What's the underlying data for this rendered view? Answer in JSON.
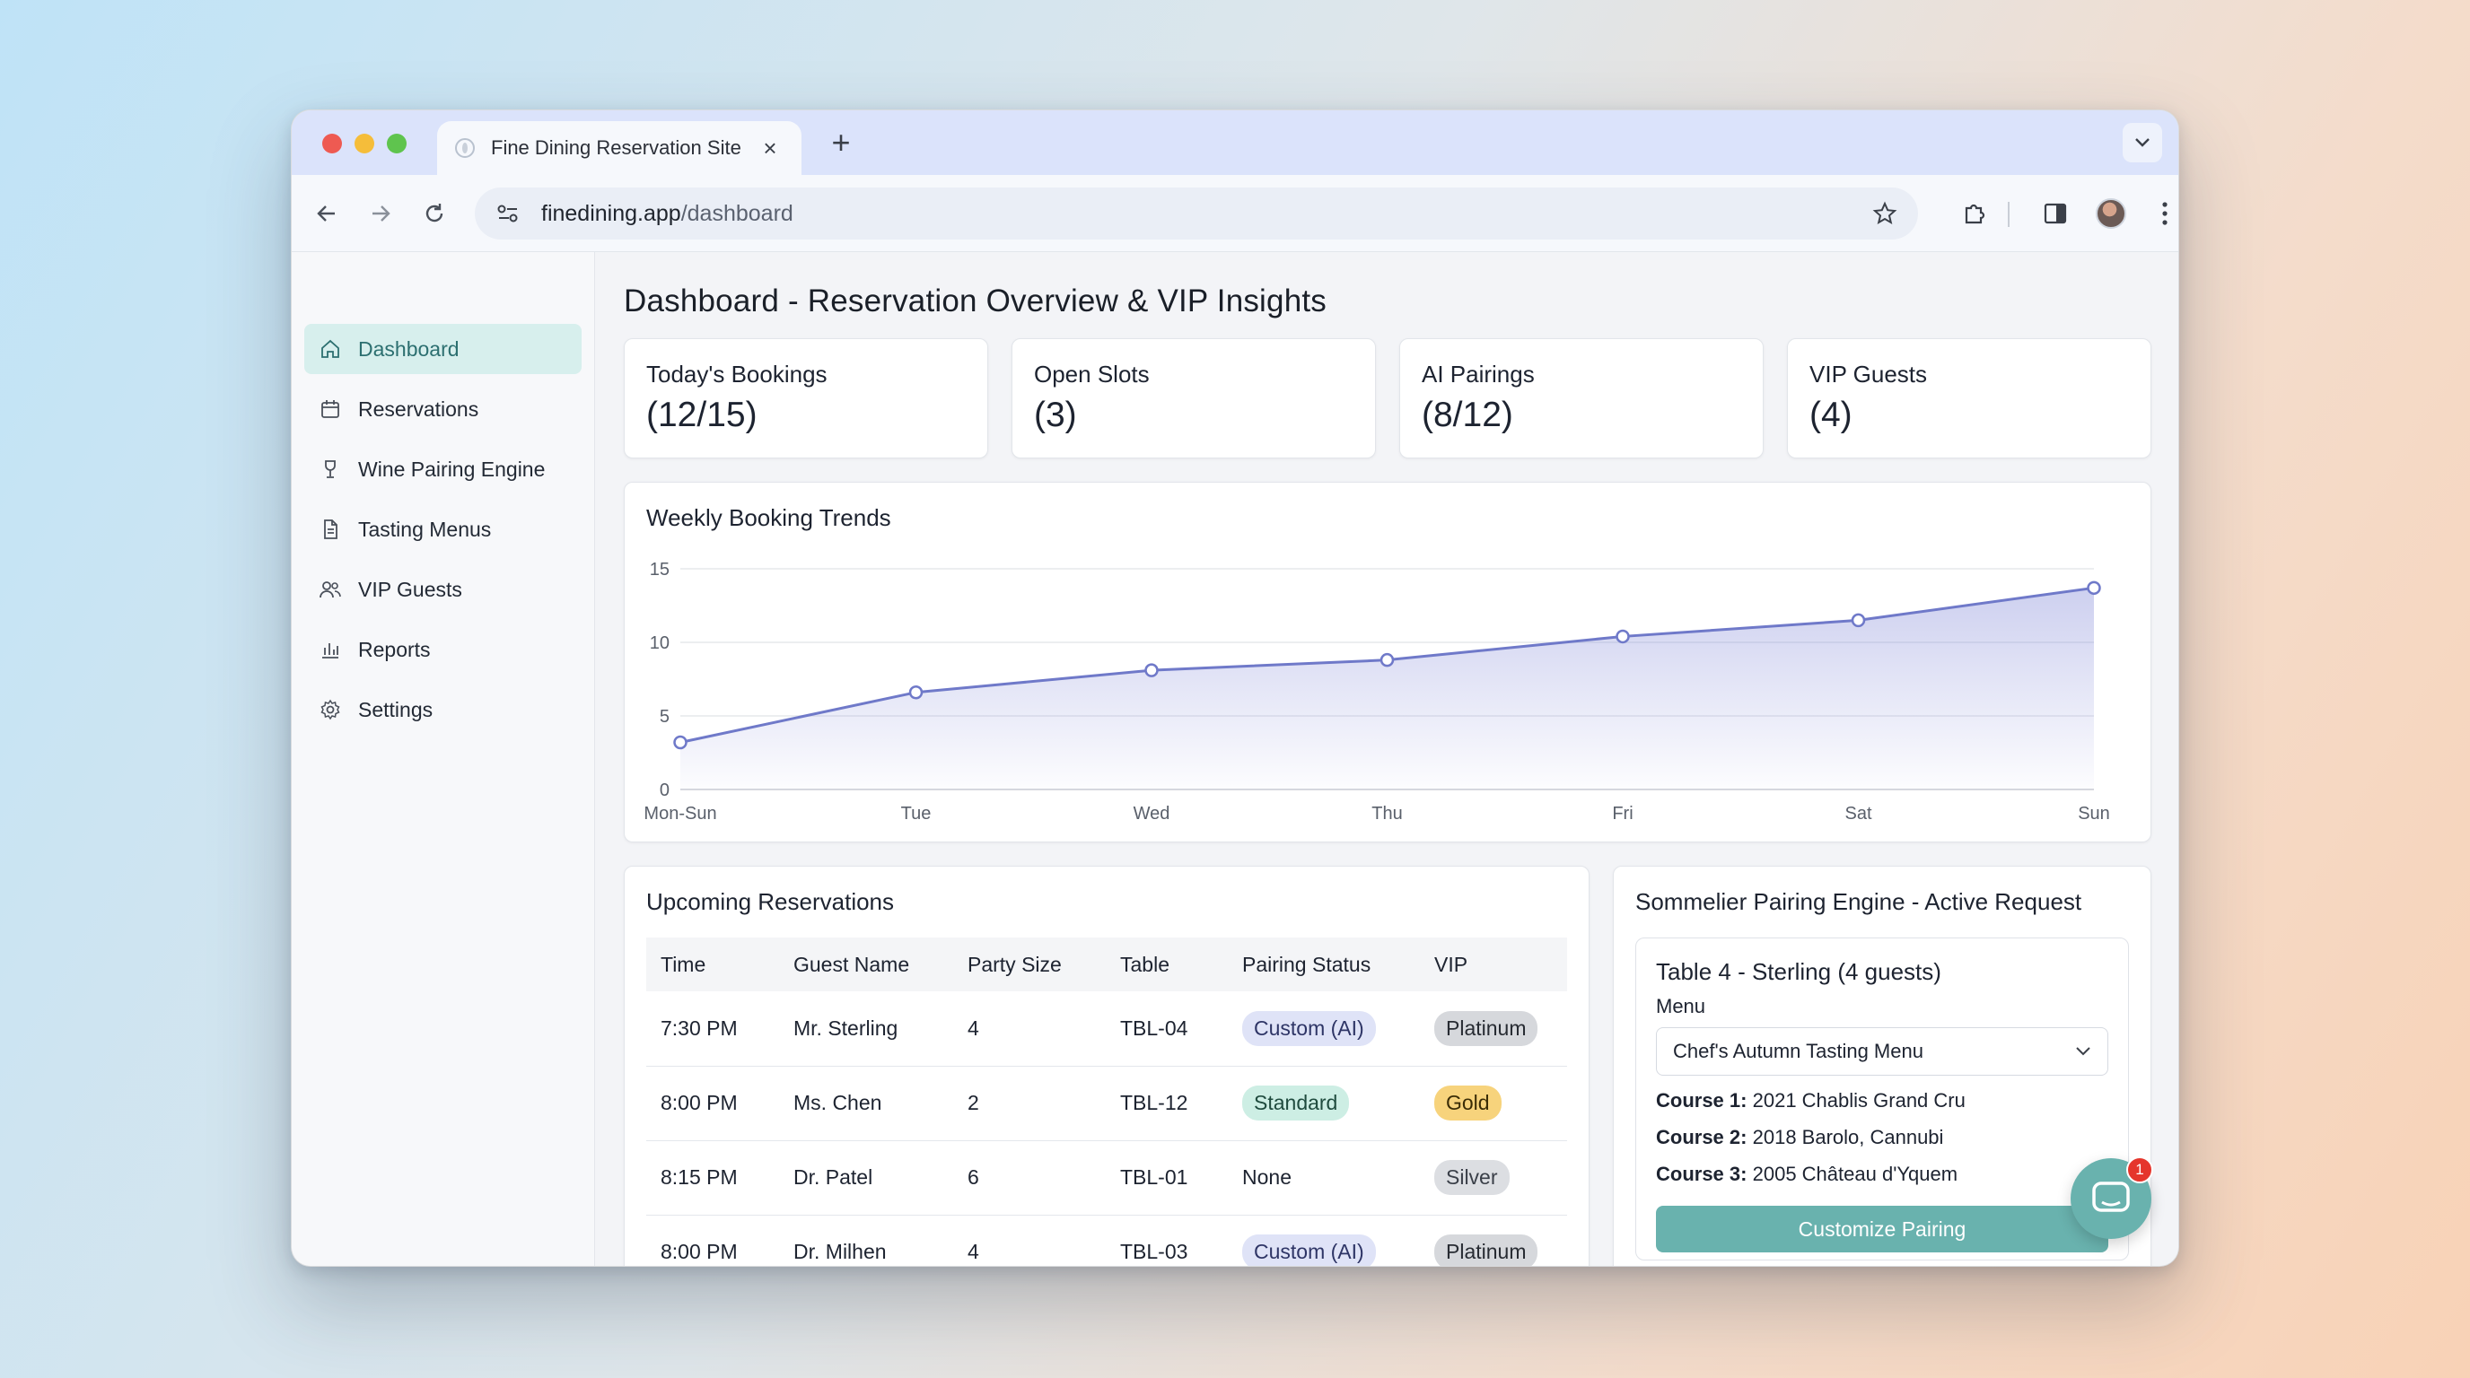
{
  "browser": {
    "tab_title": "Fine Dining Reservation Site",
    "url_host": "finedining.app",
    "url_path": "/dashboard"
  },
  "sidebar": {
    "items": [
      {
        "label": "Dashboard",
        "icon": "home-icon",
        "active": true
      },
      {
        "label": "Reservations",
        "icon": "calendar-icon",
        "active": false
      },
      {
        "label": "Wine Pairing Engine",
        "icon": "wine-glass-icon",
        "active": false
      },
      {
        "label": "Tasting Menus",
        "icon": "document-icon",
        "active": false
      },
      {
        "label": "VIP Guests",
        "icon": "users-icon",
        "active": false
      },
      {
        "label": "Reports",
        "icon": "bar-chart-icon",
        "active": false
      },
      {
        "label": "Settings",
        "icon": "gear-icon",
        "active": false
      }
    ]
  },
  "page": {
    "title": "Dashboard - Reservation Overview & VIP Insights"
  },
  "kpis": [
    {
      "label": "Today's Bookings",
      "value": "(12/15)"
    },
    {
      "label": "Open Slots",
      "value": "(3)"
    },
    {
      "label": "AI Pairings",
      "value": "(8/12)"
    },
    {
      "label": "VIP Guests",
      "value": "(4)"
    }
  ],
  "chart_data": {
    "type": "area",
    "title": "Weekly Booking Trends",
    "categories": [
      "Mon-Sun",
      "Tue",
      "Wed",
      "Thu",
      "Fri",
      "Sat",
      "Sun"
    ],
    "values": [
      3.2,
      6.6,
      8.1,
      8.8,
      10.4,
      11.5,
      13.7
    ],
    "yticks": [
      0,
      5,
      10,
      15
    ],
    "ylim": [
      0,
      15
    ],
    "grid": true,
    "color": "#6f79c9"
  },
  "reservations": {
    "title": "Upcoming Reservations",
    "columns": [
      "Time",
      "Guest Name",
      "Party Size",
      "Table",
      "Pairing Status",
      "VIP"
    ],
    "rows": [
      {
        "time": "7:30 PM",
        "guest": "Mr. Sterling",
        "party": "4",
        "table": "TBL-04",
        "pairing": "Custom (AI)",
        "pairing_kind": "custom",
        "vip": "Platinum",
        "vip_kind": "platinum"
      },
      {
        "time": "8:00 PM",
        "guest": "Ms. Chen",
        "party": "2",
        "table": "TBL-12",
        "pairing": "Standard",
        "pairing_kind": "standard",
        "vip": "Gold",
        "vip_kind": "gold"
      },
      {
        "time": "8:15 PM",
        "guest": "Dr. Patel",
        "party": "6",
        "table": "TBL-01",
        "pairing": "None",
        "pairing_kind": "none",
        "vip": "Silver",
        "vip_kind": "silver"
      },
      {
        "time": "8:00 PM",
        "guest": "Dr. Milhen",
        "party": "4",
        "table": "TBL-03",
        "pairing": "Custom (AI)",
        "pairing_kind": "custom",
        "vip": "Platinum",
        "vip_kind": "platinum"
      }
    ]
  },
  "sommelier": {
    "title": "Sommelier Pairing Engine - Active Request",
    "request_title": "Table 4 - Sterling (4 guests)",
    "menu_label": "Menu",
    "menu_value": "Chef's Autumn Tasting Menu",
    "courses": [
      {
        "label": "Course 1:",
        "wine": "2021 Chablis Grand Cru"
      },
      {
        "label": "Course 2:",
        "wine": "2018 Barolo, Cannubi"
      },
      {
        "label": "Course 3:",
        "wine": "2005 Château d'Yquem"
      }
    ],
    "button_label": "Customize Pairing"
  },
  "chat": {
    "badge_count": "1",
    "icon": "chat-bubble-icon"
  }
}
